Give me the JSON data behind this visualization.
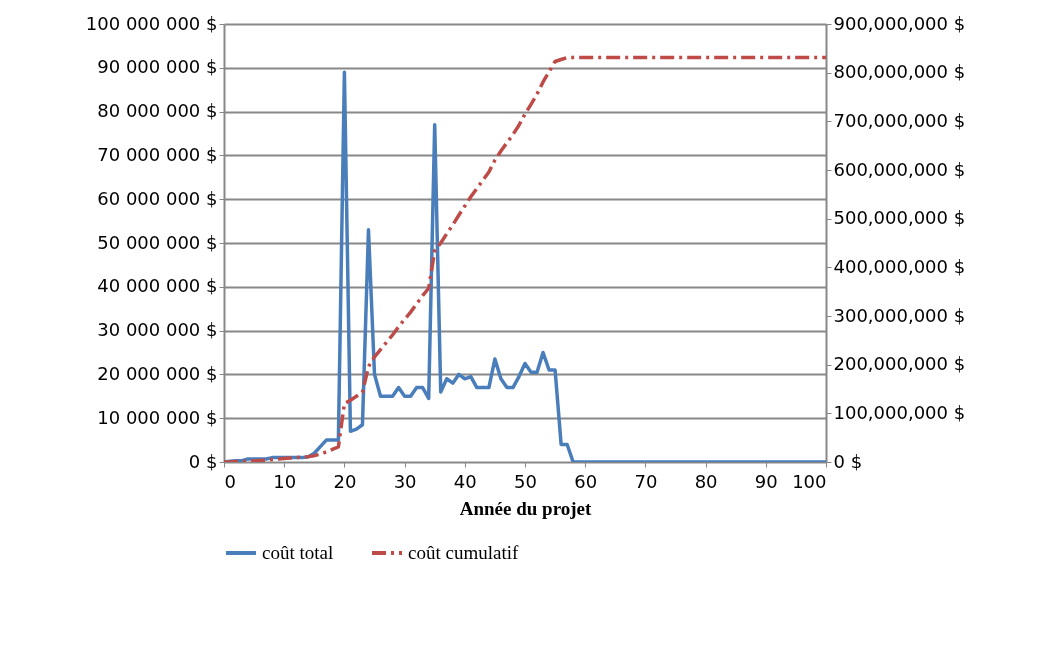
{
  "chart_data": {
    "type": "line",
    "xlabel": "Année du projet",
    "x": [
      0,
      1,
      2,
      3,
      4,
      5,
      6,
      7,
      8,
      9,
      10,
      11,
      12,
      13,
      14,
      15,
      16,
      17,
      18,
      19,
      20,
      21,
      22,
      23,
      24,
      25,
      26,
      27,
      28,
      29,
      30,
      31,
      32,
      33,
      34,
      35,
      36,
      37,
      38,
      39,
      40,
      41,
      42,
      43,
      44,
      45,
      46,
      47,
      48,
      49,
      50,
      51,
      52,
      53,
      54,
      55,
      56,
      57,
      58,
      59,
      60,
      61,
      62,
      63,
      64,
      65,
      66,
      67,
      68,
      69,
      70,
      71,
      72,
      73,
      74,
      75,
      76,
      77,
      78,
      79,
      80,
      81,
      82,
      83,
      84,
      85,
      86,
      87,
      88,
      89,
      90,
      91,
      92,
      93,
      94,
      95,
      96,
      97,
      98,
      99,
      100
    ],
    "series": [
      {
        "name": "coût total",
        "color": "#4a7ebb",
        "line_style": "solid",
        "values": [
          0,
          200000,
          300000,
          300000,
          700000,
          700000,
          700000,
          700000,
          1000000,
          1000000,
          1000000,
          1000000,
          1000000,
          1000000,
          1200000,
          2000000,
          3500000,
          5000000,
          5000000,
          5000000,
          89000000,
          7000000,
          7500000,
          8500000,
          53000000,
          20000000,
          15000000,
          15000000,
          15000000,
          17000000,
          15000000,
          15000000,
          17000000,
          17000000,
          14500000,
          77000000,
          16000000,
          19000000,
          18000000,
          20000000,
          19000000,
          19500000,
          17000000,
          17000000,
          17000000,
          23500000,
          19000000,
          17000000,
          17000000,
          19500000,
          22500000,
          20500000,
          20500000,
          25000000,
          21000000,
          21000000,
          4000000,
          4000000,
          0,
          0,
          0,
          0,
          0,
          0,
          0,
          0,
          0,
          0,
          0,
          0,
          0,
          0,
          0,
          0,
          0,
          0,
          0,
          0,
          0,
          0,
          0,
          0,
          0,
          0,
          0,
          0,
          0,
          0,
          0,
          0,
          0,
          0,
          0,
          0,
          0,
          0,
          0,
          0,
          0,
          0,
          0
        ]
      },
      {
        "name": "coût cumulatif",
        "color": "#be4b48",
        "line_style": "dashed",
        "axis": "y2",
        "values": [
          0,
          0,
          1000000,
          1000000,
          2000000,
          2000000,
          3000000,
          4000000,
          5000000,
          6000000,
          7000000,
          8000000,
          9000000,
          10000000,
          11000000,
          13000000,
          16000000,
          21000000,
          26000000,
          31000000,
          120000000,
          127000000,
          135000000,
          143000000,
          196000000,
          216000000,
          231000000,
          246000000,
          261000000,
          278000000,
          293000000,
          308000000,
          325000000,
          342000000,
          357000000,
          434000000,
          450000000,
          469000000,
          487000000,
          507000000,
          526000000,
          545000000,
          562000000,
          579000000,
          596000000,
          620000000,
          639000000,
          656000000,
          673000000,
          692000000,
          715000000,
          735000000,
          756000000,
          781000000,
          802000000,
          823000000,
          827000000,
          831000000,
          831000000,
          831000000,
          831000000,
          831000000,
          831000000,
          831000000,
          831000000,
          831000000,
          831000000,
          831000000,
          831000000,
          831000000,
          831000000,
          831000000,
          831000000,
          831000000,
          831000000,
          831000000,
          831000000,
          831000000,
          831000000,
          831000000,
          831000000,
          831000000,
          831000000,
          831000000,
          831000000,
          831000000,
          831000000,
          831000000,
          831000000,
          831000000,
          831000000,
          831000000,
          831000000,
          831000000,
          831000000,
          831000000,
          831000000,
          831000000,
          831000000,
          831000000,
          831000000
        ]
      }
    ],
    "xlim": [
      0,
      100
    ],
    "xticks": [
      0,
      10,
      20,
      30,
      40,
      50,
      60,
      70,
      80,
      90,
      100
    ],
    "ylim": [
      0,
      100000000
    ],
    "yticks": [
      {
        "value": 0,
        "label": "0 $"
      },
      {
        "value": 10000000,
        "label": "10 000 000 $"
      },
      {
        "value": 20000000,
        "label": "20 000 000 $"
      },
      {
        "value": 30000000,
        "label": "30 000 000 $"
      },
      {
        "value": 40000000,
        "label": "40 000 000 $"
      },
      {
        "value": 50000000,
        "label": "50 000 000 $"
      },
      {
        "value": 60000000,
        "label": "60 000 000 $"
      },
      {
        "value": 70000000,
        "label": "70 000 000 $"
      },
      {
        "value": 80000000,
        "label": "80 000 000 $"
      },
      {
        "value": 90000000,
        "label": "90 000 000 $"
      },
      {
        "value": 100000000,
        "label": "100 000 000 $"
      }
    ],
    "y2lim": [
      0,
      900000000
    ],
    "y2ticks": [
      {
        "value": 0,
        "label": "0 $"
      },
      {
        "value": 100000000,
        "label": "100,000,000 $"
      },
      {
        "value": 200000000,
        "label": "200,000,000 $"
      },
      {
        "value": 300000000,
        "label": "300,000,000 $"
      },
      {
        "value": 400000000,
        "label": "400,000,000 $"
      },
      {
        "value": 500000000,
        "label": "500,000,000 $"
      },
      {
        "value": 600000000,
        "label": "600,000,000 $"
      },
      {
        "value": 700000000,
        "label": "700,000,000 $"
      },
      {
        "value": 800000000,
        "label": "800,000,000 $"
      },
      {
        "value": 900000000,
        "label": "900,000,000 $"
      }
    ],
    "grid": "y",
    "legend": "bottom"
  }
}
